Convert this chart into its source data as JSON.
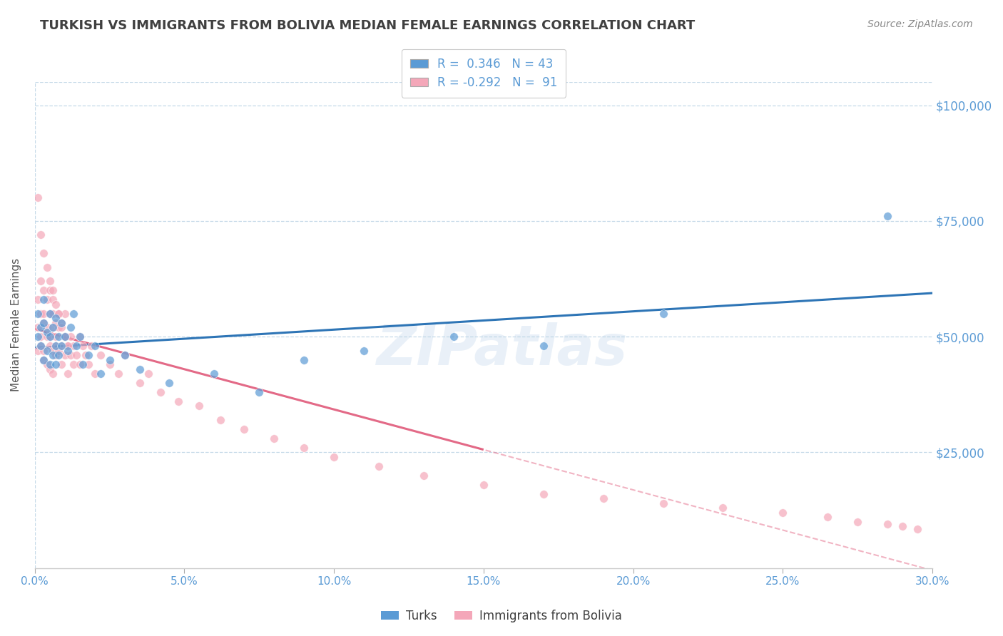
{
  "title": "TURKISH VS IMMIGRANTS FROM BOLIVIA MEDIAN FEMALE EARNINGS CORRELATION CHART",
  "source": "Source: ZipAtlas.com",
  "ylabel": "Median Female Earnings",
  "xlim": [
    0.0,
    0.3
  ],
  "ylim": [
    0,
    105000
  ],
  "xticks": [
    0.0,
    0.05,
    0.1,
    0.15,
    0.2,
    0.25,
    0.3
  ],
  "xtick_labels": [
    "0.0%",
    "5.0%",
    "10.0%",
    "15.0%",
    "20.0%",
    "25.0%",
    "30.0%"
  ],
  "legend_R_blue": "0.346",
  "legend_N_blue": "43",
  "legend_R_pink": "-0.292",
  "legend_N_pink": "91",
  "legend_label_blue": "Turks",
  "legend_label_pink": "Immigrants from Bolivia",
  "blue_color": "#5b9bd5",
  "pink_color": "#f4a7b9",
  "trend_blue_color": "#2e75b6",
  "trend_pink_color": "#e05a7a",
  "watermark": "ZIPatlas",
  "axis_color": "#5b9bd5",
  "background_color": "#ffffff",
  "title_color": "#404040",
  "turks_x": [
    0.001,
    0.001,
    0.002,
    0.002,
    0.003,
    0.003,
    0.003,
    0.004,
    0.004,
    0.005,
    0.005,
    0.005,
    0.006,
    0.006,
    0.007,
    0.007,
    0.007,
    0.008,
    0.008,
    0.009,
    0.009,
    0.01,
    0.011,
    0.012,
    0.013,
    0.014,
    0.015,
    0.016,
    0.018,
    0.02,
    0.022,
    0.025,
    0.03,
    0.035,
    0.045,
    0.06,
    0.075,
    0.09,
    0.11,
    0.14,
    0.17,
    0.21,
    0.285
  ],
  "turks_y": [
    50000,
    55000,
    48000,
    52000,
    45000,
    53000,
    58000,
    47000,
    51000,
    44000,
    55000,
    50000,
    52000,
    46000,
    48000,
    54000,
    44000,
    50000,
    46000,
    53000,
    48000,
    50000,
    47000,
    52000,
    55000,
    48000,
    50000,
    44000,
    46000,
    48000,
    42000,
    45000,
    46000,
    43000,
    40000,
    42000,
    38000,
    45000,
    47000,
    50000,
    48000,
    55000,
    76000
  ],
  "bolivia_x": [
    0.001,
    0.001,
    0.001,
    0.002,
    0.002,
    0.002,
    0.002,
    0.003,
    0.003,
    0.003,
    0.003,
    0.003,
    0.004,
    0.004,
    0.004,
    0.004,
    0.005,
    0.005,
    0.005,
    0.005,
    0.005,
    0.006,
    0.006,
    0.006,
    0.006,
    0.006,
    0.007,
    0.007,
    0.007,
    0.007,
    0.008,
    0.008,
    0.008,
    0.009,
    0.009,
    0.009,
    0.01,
    0.01,
    0.01,
    0.011,
    0.011,
    0.012,
    0.012,
    0.013,
    0.013,
    0.014,
    0.015,
    0.015,
    0.016,
    0.017,
    0.018,
    0.019,
    0.02,
    0.022,
    0.025,
    0.028,
    0.03,
    0.035,
    0.038,
    0.042,
    0.048,
    0.055,
    0.062,
    0.07,
    0.08,
    0.09,
    0.1,
    0.115,
    0.13,
    0.15,
    0.17,
    0.19,
    0.21,
    0.23,
    0.25,
    0.265,
    0.275,
    0.285,
    0.29,
    0.295,
    0.001,
    0.002,
    0.003,
    0.004,
    0.005,
    0.006,
    0.007,
    0.008,
    0.009,
    0.01,
    0.011
  ],
  "bolivia_y": [
    52000,
    58000,
    47000,
    55000,
    62000,
    48000,
    50000,
    53000,
    47000,
    60000,
    45000,
    55000,
    50000,
    58000,
    44000,
    52000,
    55000,
    48000,
    60000,
    43000,
    50000,
    52000,
    47000,
    55000,
    42000,
    58000,
    50000,
    53000,
    46000,
    48000,
    55000,
    47000,
    52000,
    48000,
    53000,
    44000,
    50000,
    46000,
    55000,
    48000,
    42000,
    50000,
    46000,
    48000,
    44000,
    46000,
    50000,
    44000,
    48000,
    46000,
    44000,
    48000,
    42000,
    46000,
    44000,
    42000,
    46000,
    40000,
    42000,
    38000,
    36000,
    35000,
    32000,
    30000,
    28000,
    26000,
    24000,
    22000,
    20000,
    18000,
    16000,
    15000,
    14000,
    13000,
    12000,
    11000,
    10000,
    9500,
    9000,
    8500,
    80000,
    72000,
    68000,
    65000,
    62000,
    60000,
    57000,
    55000,
    52000,
    50000,
    48000
  ]
}
